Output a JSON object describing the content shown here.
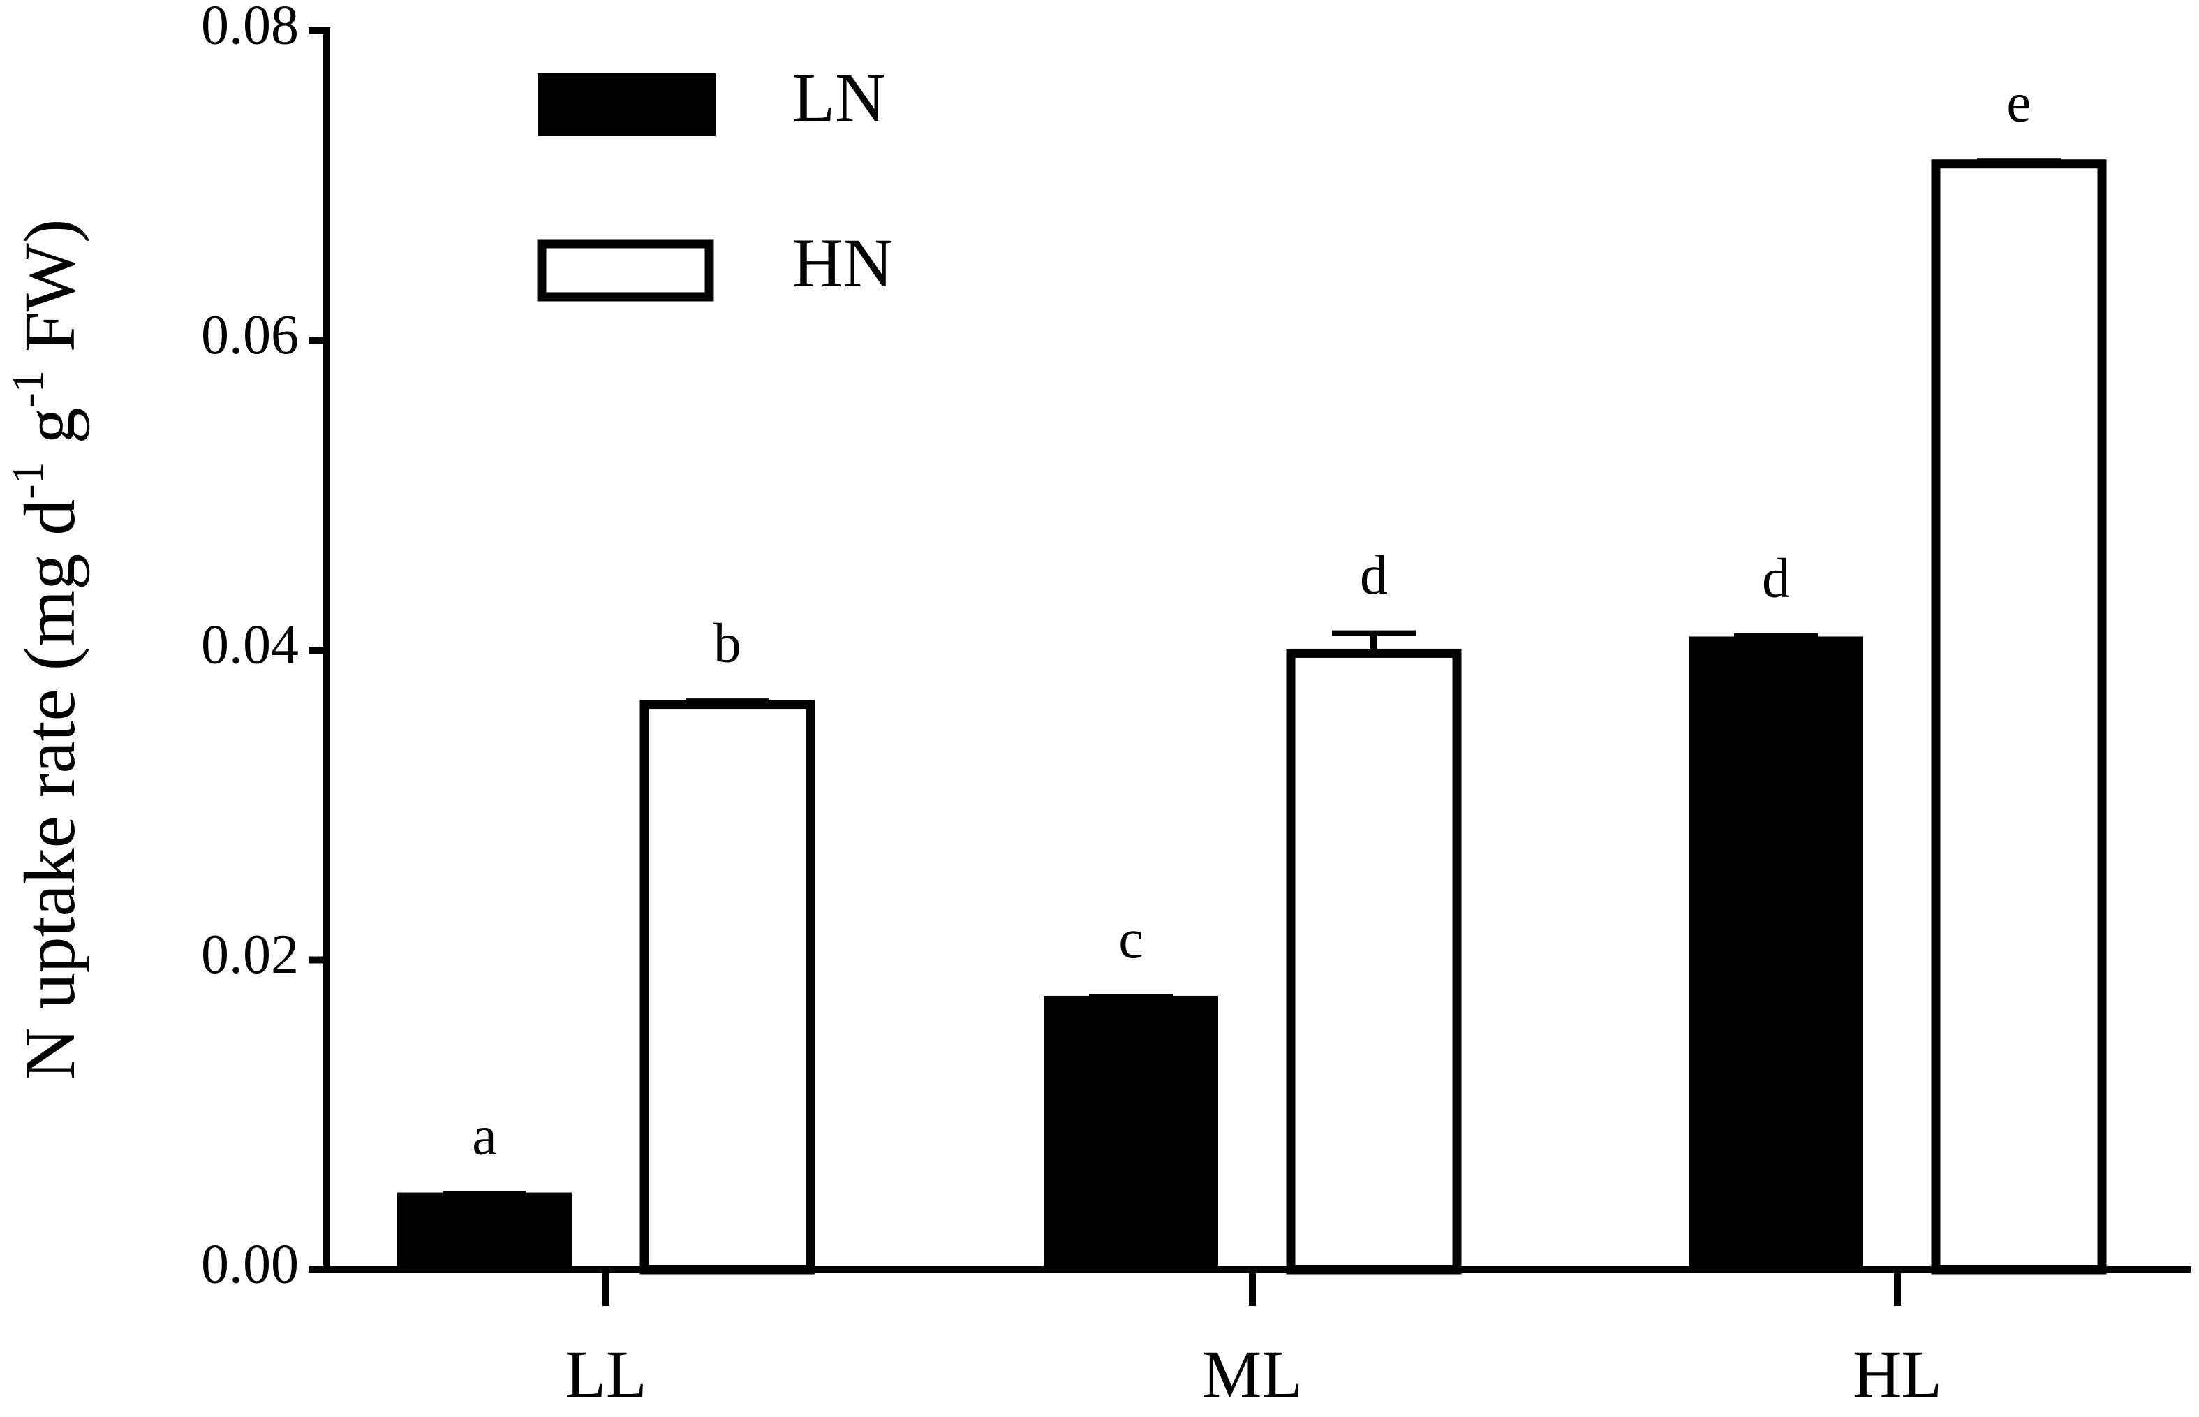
{
  "chart_data": {
    "type": "bar",
    "ylabel": [
      "N uptake rate (mg d",
      "-1",
      " g",
      "-1",
      " FW)"
    ],
    "categories": [
      "LL",
      "ML",
      "HL"
    ],
    "series": [
      {
        "name": "LN",
        "color": "#000000",
        "values": [
          0.0048,
          0.0175,
          0.0407
        ],
        "errors": [
          0.0001,
          0.0001,
          0.0002
        ],
        "labels": [
          "a",
          "c",
          "d"
        ]
      },
      {
        "name": "HN",
        "color": "#ffffff",
        "values": [
          0.0365,
          0.0398,
          0.0714
        ],
        "errors": [
          0.0002,
          0.0013,
          0.0002
        ],
        "labels": [
          "b",
          "d",
          "e"
        ]
      }
    ],
    "ylim": [
      0,
      0.08
    ],
    "yticks": [
      {
        "value": 0,
        "label": "0.00"
      },
      {
        "value": 0.02,
        "label": "0.02"
      },
      {
        "value": 0.04,
        "label": "0.04"
      },
      {
        "value": 0.06,
        "label": "0.06"
      },
      {
        "value": 0.08,
        "label": "0.08"
      }
    ],
    "grid": false
  }
}
